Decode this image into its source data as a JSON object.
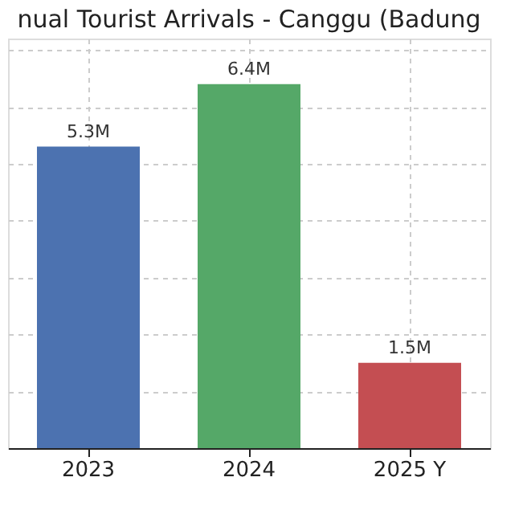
{
  "chart_data": {
    "type": "bar",
    "title": "nual Tourist Arrivals - Canggu (Badung",
    "categories": [
      "2023",
      "2024",
      "2025 Y"
    ],
    "values": [
      5.3,
      6.4,
      1.5
    ],
    "colors": [
      "#4c72b0",
      "#55a868",
      "#c44e52"
    ],
    "value_labels": [
      "5.3M",
      "6.4M",
      "1.5M"
    ],
    "ylim": [
      0,
      7.2
    ],
    "yticks": [
      {
        "value": 0,
        "label": null
      },
      {
        "value": 1,
        "label": null
      },
      {
        "value": 2,
        "label": null
      },
      {
        "value": 3,
        "label": null
      },
      {
        "value": 4,
        "label": null
      },
      {
        "value": 5,
        "label": null
      },
      {
        "value": 6,
        "label": null
      },
      {
        "value": 7,
        "label": null
      }
    ],
    "tick_labels": "x",
    "grid": true
  }
}
